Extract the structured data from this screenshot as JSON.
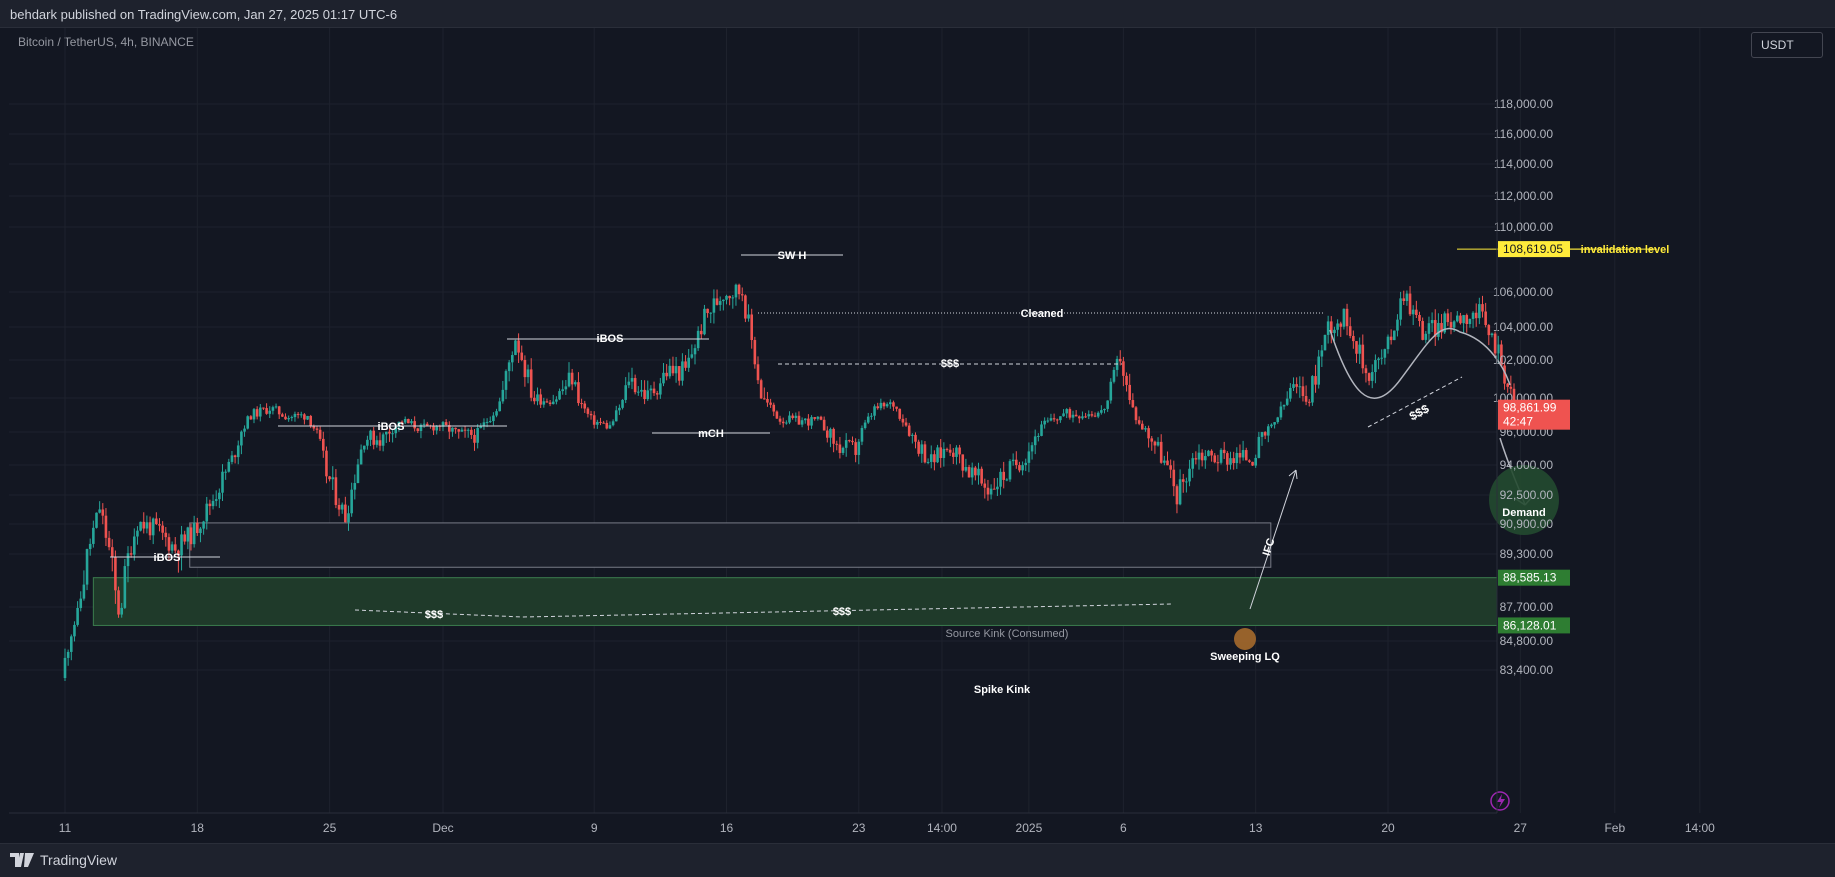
{
  "header": {
    "published": "behdark published on TradingView.com, Jan 27, 2025 01:17 UTC-6"
  },
  "symbol": {
    "title": "Bitcoin / TetherUS, 4h, BINANCE"
  },
  "currency_button": "USDT",
  "footer": {
    "brand": "TradingView"
  },
  "colors": {
    "background": "#131722",
    "up": "#26a69a",
    "down": "#ef5350",
    "demand": "#2e5a3a",
    "invalidation": "#ffeb3b",
    "grid": "#1e222d"
  },
  "chart_data": {
    "type": "candlestick",
    "title": "Bitcoin / TetherUS, 4h, BINANCE",
    "y_ticks": [
      "118,000.00",
      "116,000.00",
      "114,000.00",
      "112,000.00",
      "110,000.00",
      "106,000.00",
      "104,000.00",
      "102,000.00",
      "100,000.00",
      "96,000.00",
      "94,000.00",
      "92,500.00",
      "90,900.00",
      "89,300.00",
      "87,700.00",
      "84,800.00",
      "83,400.00"
    ],
    "x_ticks": [
      "11",
      "18",
      "25",
      "Dec",
      "9",
      "16",
      "23",
      "14:00",
      "2025",
      "6",
      "13",
      "20",
      "27",
      "Feb",
      "14:00"
    ],
    "close_path": [
      [
        "Nov 11",
        83000
      ],
      [
        "Nov 12",
        88000
      ],
      [
        "Nov 13",
        91800
      ],
      [
        "Nov 14",
        87300
      ],
      [
        "Nov 15",
        91000
      ],
      [
        "Nov 16",
        90600
      ],
      [
        "Nov 17",
        89600
      ],
      [
        "Nov 18",
        90500
      ],
      [
        "Nov 19",
        92300
      ],
      [
        "Nov 20",
        94300
      ],
      [
        "Nov 21",
        98000
      ],
      [
        "Nov 22",
        98800
      ],
      [
        "Nov 23",
        97800
      ],
      [
        "Nov 24",
        98000
      ],
      [
        "Nov 25",
        93600
      ],
      [
        "Nov 26",
        91300
      ],
      [
        "Nov 27",
        95700
      ],
      [
        "Nov 28",
        95600
      ],
      [
        "Nov 29",
        97300
      ],
      [
        "Nov 30",
        96400
      ],
      [
        "Dec 01",
        96800
      ],
      [
        "Dec 02",
        95800
      ],
      [
        "Dec 03",
        95900
      ],
      [
        "Dec 04",
        98800
      ],
      [
        "Dec 05",
        103400
      ],
      [
        "Dec 06",
        99800
      ],
      [
        "Dec 07",
        99800
      ],
      [
        "Dec 08",
        101100
      ],
      [
        "Dec 09",
        97400
      ],
      [
        "Dec 10",
        96600
      ],
      [
        "Dec 11",
        101100
      ],
      [
        "Dec 12",
        100000
      ],
      [
        "Dec 13",
        101400
      ],
      [
        "Dec 14",
        101400
      ],
      [
        "Dec 15",
        104500
      ],
      [
        "Dec 16",
        106000
      ],
      [
        "Dec 17",
        106100
      ],
      [
        "Dec 18",
        100200
      ],
      [
        "Dec 19",
        97500
      ],
      [
        "Dec 20",
        97300
      ],
      [
        "Dec 21",
        97300
      ],
      [
        "Dec 22",
        95100
      ],
      [
        "Dec 23",
        94900
      ],
      [
        "Dec 24",
        98700
      ],
      [
        "Dec 25",
        99300
      ],
      [
        "Dec 26",
        95700
      ],
      [
        "Dec 27",
        94200
      ],
      [
        "Dec 28",
        95200
      ],
      [
        "Dec 29",
        93700
      ],
      [
        "Dec 30",
        92800
      ],
      [
        "Dec 31",
        93600
      ],
      [
        "Jan 01",
        94600
      ],
      [
        "Jan 02",
        96900
      ],
      [
        "Jan 03",
        98100
      ],
      [
        "Jan 04",
        98200
      ],
      [
        "Jan 05",
        98300
      ],
      [
        "Jan 06",
        102300
      ],
      [
        "Jan 07",
        96900
      ],
      [
        "Jan 08",
        95000
      ],
      [
        "Jan 09",
        92500
      ],
      [
        "Jan 10",
        94700
      ],
      [
        "Jan 11",
        94500
      ],
      [
        "Jan 12",
        94500
      ],
      [
        "Jan 13",
        94500
      ],
      [
        "Jan 14",
        96500
      ],
      [
        "Jan 15",
        100500
      ],
      [
        "Jan 16",
        99900
      ],
      [
        "Jan 17",
        104100
      ],
      [
        "Jan 18",
        104500
      ],
      [
        "Jan 19",
        101300
      ],
      [
        "Jan 20",
        102300
      ],
      [
        "Jan 21",
        106100
      ],
      [
        "Jan 22",
        103700
      ],
      [
        "Jan 23",
        104100
      ],
      [
        "Jan 24",
        104700
      ],
      [
        "Jan 25",
        104700
      ],
      [
        "Jan 26",
        102600
      ],
      [
        "Jan 27",
        98862
      ]
    ],
    "price_labels": [
      {
        "value": "108,619.05",
        "type": "invalidation"
      },
      {
        "value": "98,861.99",
        "sub": "42:47",
        "type": "last"
      },
      {
        "value": "88,585.13",
        "type": "zone"
      },
      {
        "value": "86,128.01",
        "type": "zone"
      }
    ],
    "annotations": [
      "iBOS",
      "iBOS",
      "iBOS",
      "SW H",
      "Cleaned",
      "$$$",
      "mCH",
      "$$$",
      "$$$",
      "Source Kink (Consumed)",
      "Sweeping LQ",
      "Spike Kink",
      "IFC",
      "$$$",
      "invalidation level",
      "Demand"
    ]
  }
}
